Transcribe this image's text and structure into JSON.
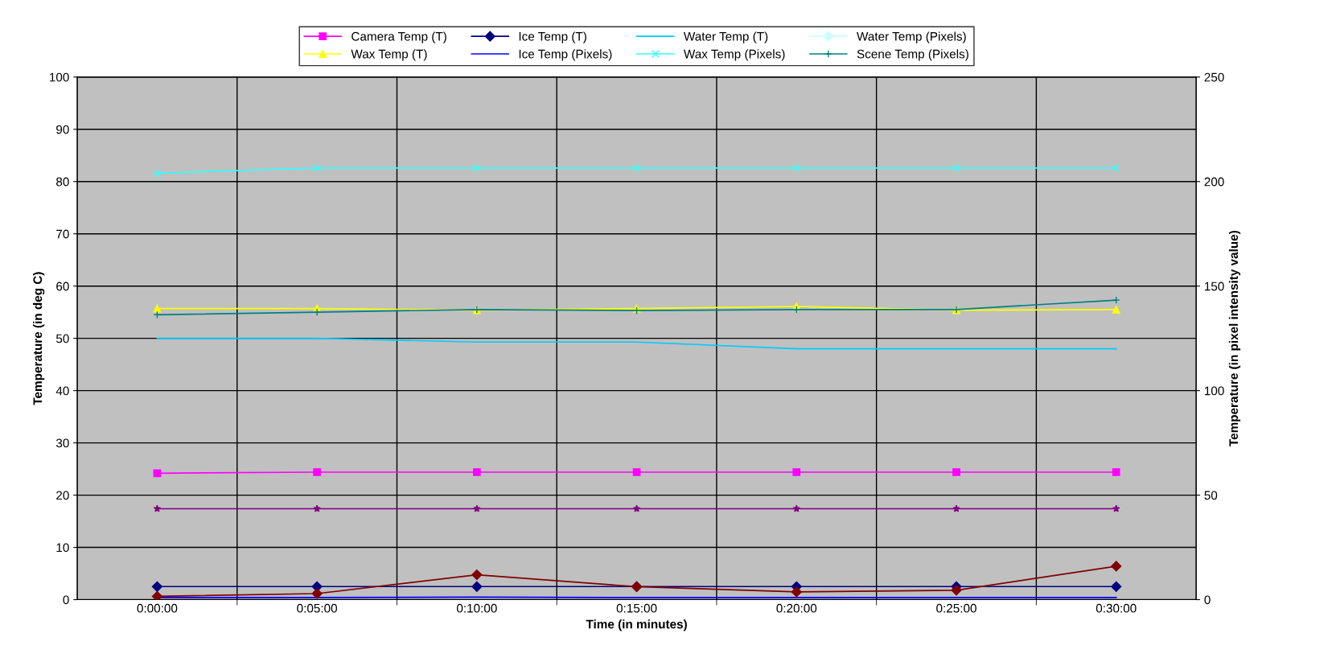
{
  "chart_data": {
    "type": "line",
    "xlabel": "Time (in minutes)",
    "ylabel": "Temperature (in deg C)",
    "y2label": "Temperature (in pixel intensity value)",
    "categories": [
      "0:00:00",
      "0:05:00",
      "0:10:00",
      "0:15:00",
      "0:20:00",
      "0:25:00",
      "0:30:00"
    ],
    "ylim": [
      0,
      100
    ],
    "yticks": [
      0,
      10,
      20,
      30,
      40,
      50,
      60,
      70,
      80,
      90,
      100
    ],
    "y2lim": [
      0,
      250
    ],
    "y2ticks": [
      0,
      50,
      100,
      150,
      200,
      250
    ],
    "grid": true,
    "legend": "top",
    "series": [
      {
        "name": "Camera Temp (T)",
        "color": "#ff00ff",
        "marker": "square",
        "values": [
          24.2,
          24.4,
          24.4,
          24.4,
          24.4,
          24.4,
          24.4
        ]
      },
      {
        "name": "Ice Temp (T)",
        "color": "#000080",
        "marker": "diamond",
        "values": [
          2.5,
          2.5,
          2.5,
          2.5,
          2.5,
          2.5,
          2.5
        ]
      },
      {
        "name": "Water Temp (T)",
        "color": "#00ccff",
        "marker": "none",
        "values": [
          50,
          50,
          49.3,
          49.3,
          48,
          48,
          48
        ]
      },
      {
        "name": "Water Temp (Pixels)",
        "color": "#ccffff",
        "marker": "diamond",
        "axis": "y2",
        "values": [
          null,
          null,
          null,
          null,
          null,
          null,
          null
        ]
      },
      {
        "name": "Wax Temp (T)",
        "color": "#ffff00",
        "marker": "triangle",
        "values": [
          55.7,
          55.7,
          55.4,
          55.7,
          56.1,
          55.4,
          55.5
        ]
      },
      {
        "color": "#800080",
        "marker": "star",
        "values": [
          17.4,
          17.4,
          17.4,
          17.4,
          17.4,
          17.4,
          17.4
        ]
      },
      {
        "name": "Ice Temp (Pixels)",
        "color": "#0000ff",
        "marker": "none",
        "axis": "y2",
        "values": [
          1,
          1,
          1.2,
          1,
          1,
          1,
          1
        ]
      },
      {
        "name": "Wax Temp (Pixels)",
        "color": "#33ffff",
        "marker": "cross",
        "axis": "y2",
        "values": [
          204,
          206.5,
          206.5,
          206.5,
          206.5,
          206.5,
          206.5
        ]
      },
      {
        "color": "#800000",
        "marker": "diamond",
        "axis": "y2",
        "values": [
          1.6,
          2.9,
          11.9,
          6.2,
          3.7,
          4.5,
          16
        ]
      },
      {
        "name": "Scene Temp (Pixels)",
        "color": "#008080",
        "marker": "cross",
        "axis": "y2",
        "values": [
          136.3,
          137.5,
          138.8,
          138.3,
          138.8,
          138.8,
          143.3
        ]
      }
    ]
  }
}
